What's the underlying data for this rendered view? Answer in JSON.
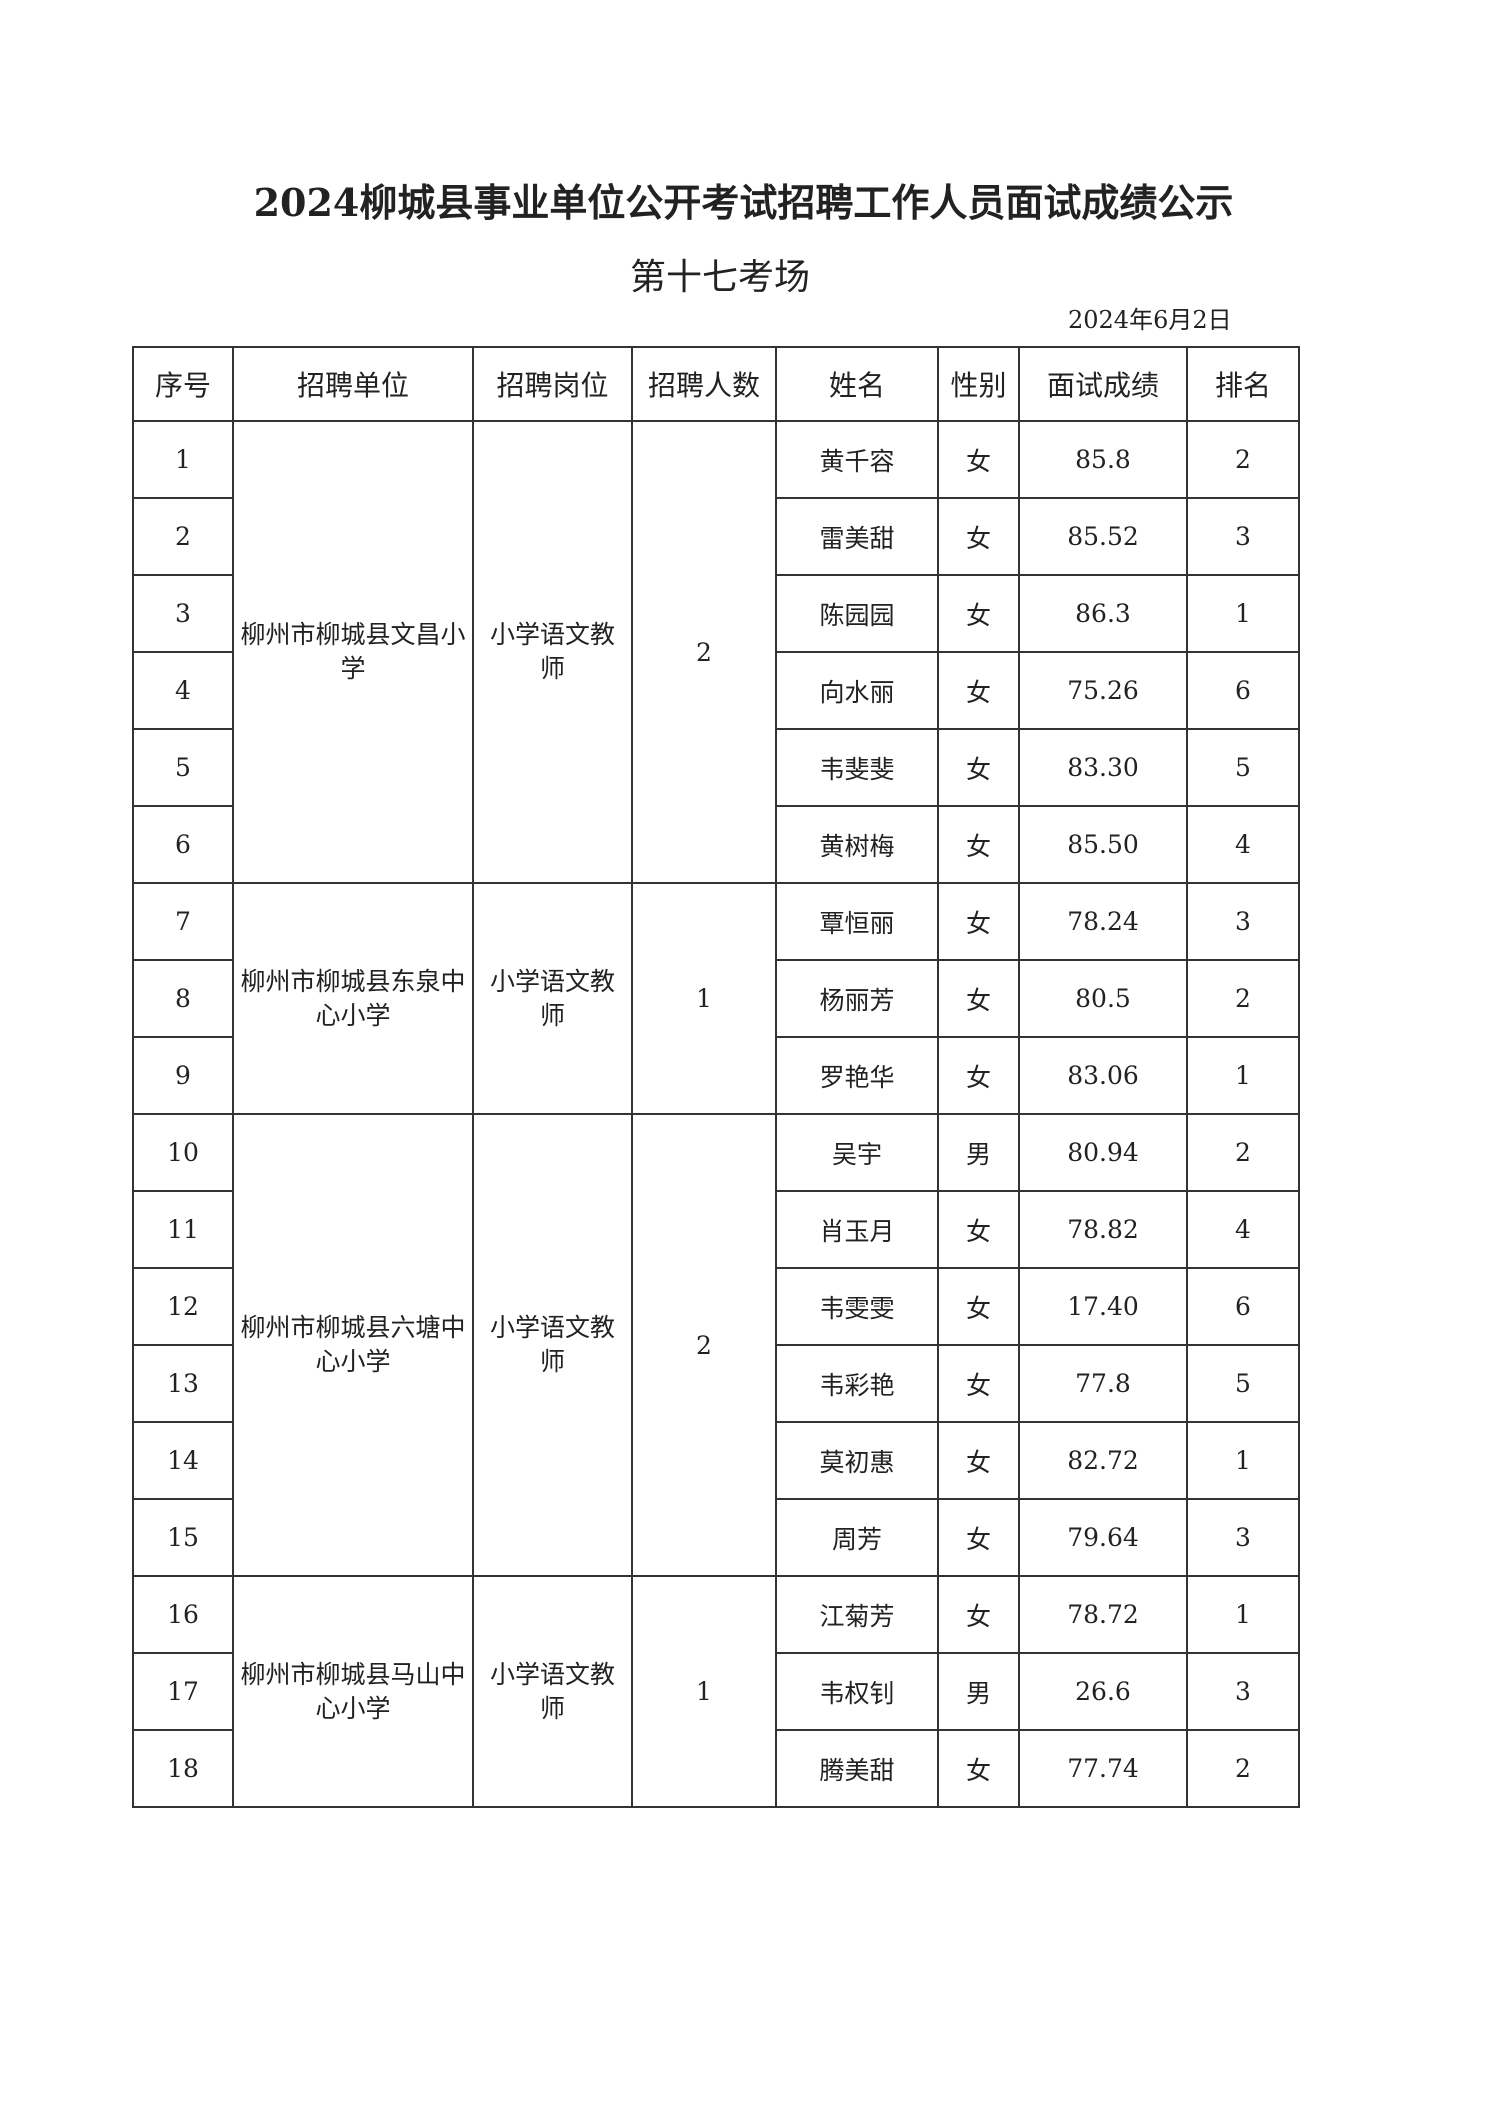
{
  "title": "2024柳城县事业单位公开考试招聘工作人员面试成绩公示",
  "subtitle": "第十七考场",
  "date": "2024年6月2日",
  "headers": [
    "序号",
    "招聘单位",
    "招聘岗位",
    "招聘人数",
    "姓名",
    "性别",
    "面试成绩",
    "排名"
  ],
  "groups": [
    {
      "unit": "柳州市柳城县文昌小学",
      "position": "小学语文教师",
      "count": "2",
      "rows": [
        {
          "no": "1",
          "name": "黄千容",
          "gender": "女",
          "score": "85.8",
          "rank": "2"
        },
        {
          "no": "2",
          "name": "雷美甜",
          "gender": "女",
          "score": "85.52",
          "rank": "3"
        },
        {
          "no": "3",
          "name": "陈园园",
          "gender": "女",
          "score": "86.3",
          "rank": "1"
        },
        {
          "no": "4",
          "name": "向水丽",
          "gender": "女",
          "score": "75.26",
          "rank": "6"
        },
        {
          "no": "5",
          "name": "韦斐斐",
          "gender": "女",
          "score": "83.30",
          "rank": "5"
        },
        {
          "no": "6",
          "name": "黄树梅",
          "gender": "女",
          "score": "85.50",
          "rank": "4"
        }
      ]
    },
    {
      "unit": "柳州市柳城县东泉中心小学",
      "position": "小学语文教师",
      "count": "1",
      "rows": [
        {
          "no": "7",
          "name": "覃恒丽",
          "gender": "女",
          "score": "78.24",
          "rank": "3"
        },
        {
          "no": "8",
          "name": "杨丽芳",
          "gender": "女",
          "score": "80.5",
          "rank": "2"
        },
        {
          "no": "9",
          "name": "罗艳华",
          "gender": "女",
          "score": "83.06",
          "rank": "1"
        }
      ]
    },
    {
      "unit": "柳州市柳城县六塘中心小学",
      "position": "小学语文教师",
      "count": "2",
      "rows": [
        {
          "no": "10",
          "name": "吴宇",
          "gender": "男",
          "score": "80.94",
          "rank": "2"
        },
        {
          "no": "11",
          "name": "肖玉月",
          "gender": "女",
          "score": "78.82",
          "rank": "4"
        },
        {
          "no": "12",
          "name": "韦雯雯",
          "gender": "女",
          "score": "17.40",
          "rank": "6"
        },
        {
          "no": "13",
          "name": "韦彩艳",
          "gender": "女",
          "score": "77.8",
          "rank": "5"
        },
        {
          "no": "14",
          "name": "莫初惠",
          "gender": "女",
          "score": "82.72",
          "rank": "1"
        },
        {
          "no": "15",
          "name": "周芳",
          "gender": "女",
          "score": "79.64",
          "rank": "3"
        }
      ]
    },
    {
      "unit": "柳州市柳城县马山中心小学",
      "position": "小学语文教师",
      "count": "1",
      "rows": [
        {
          "no": "16",
          "name": "江菊芳",
          "gender": "女",
          "score": "78.72",
          "rank": "1"
        },
        {
          "no": "17",
          "name": "韦权钊",
          "gender": "男",
          "score": "26.6",
          "rank": "3"
        },
        {
          "no": "18",
          "name": "腾美甜",
          "gender": "女",
          "score": "77.74",
          "rank": "2"
        }
      ]
    }
  ]
}
